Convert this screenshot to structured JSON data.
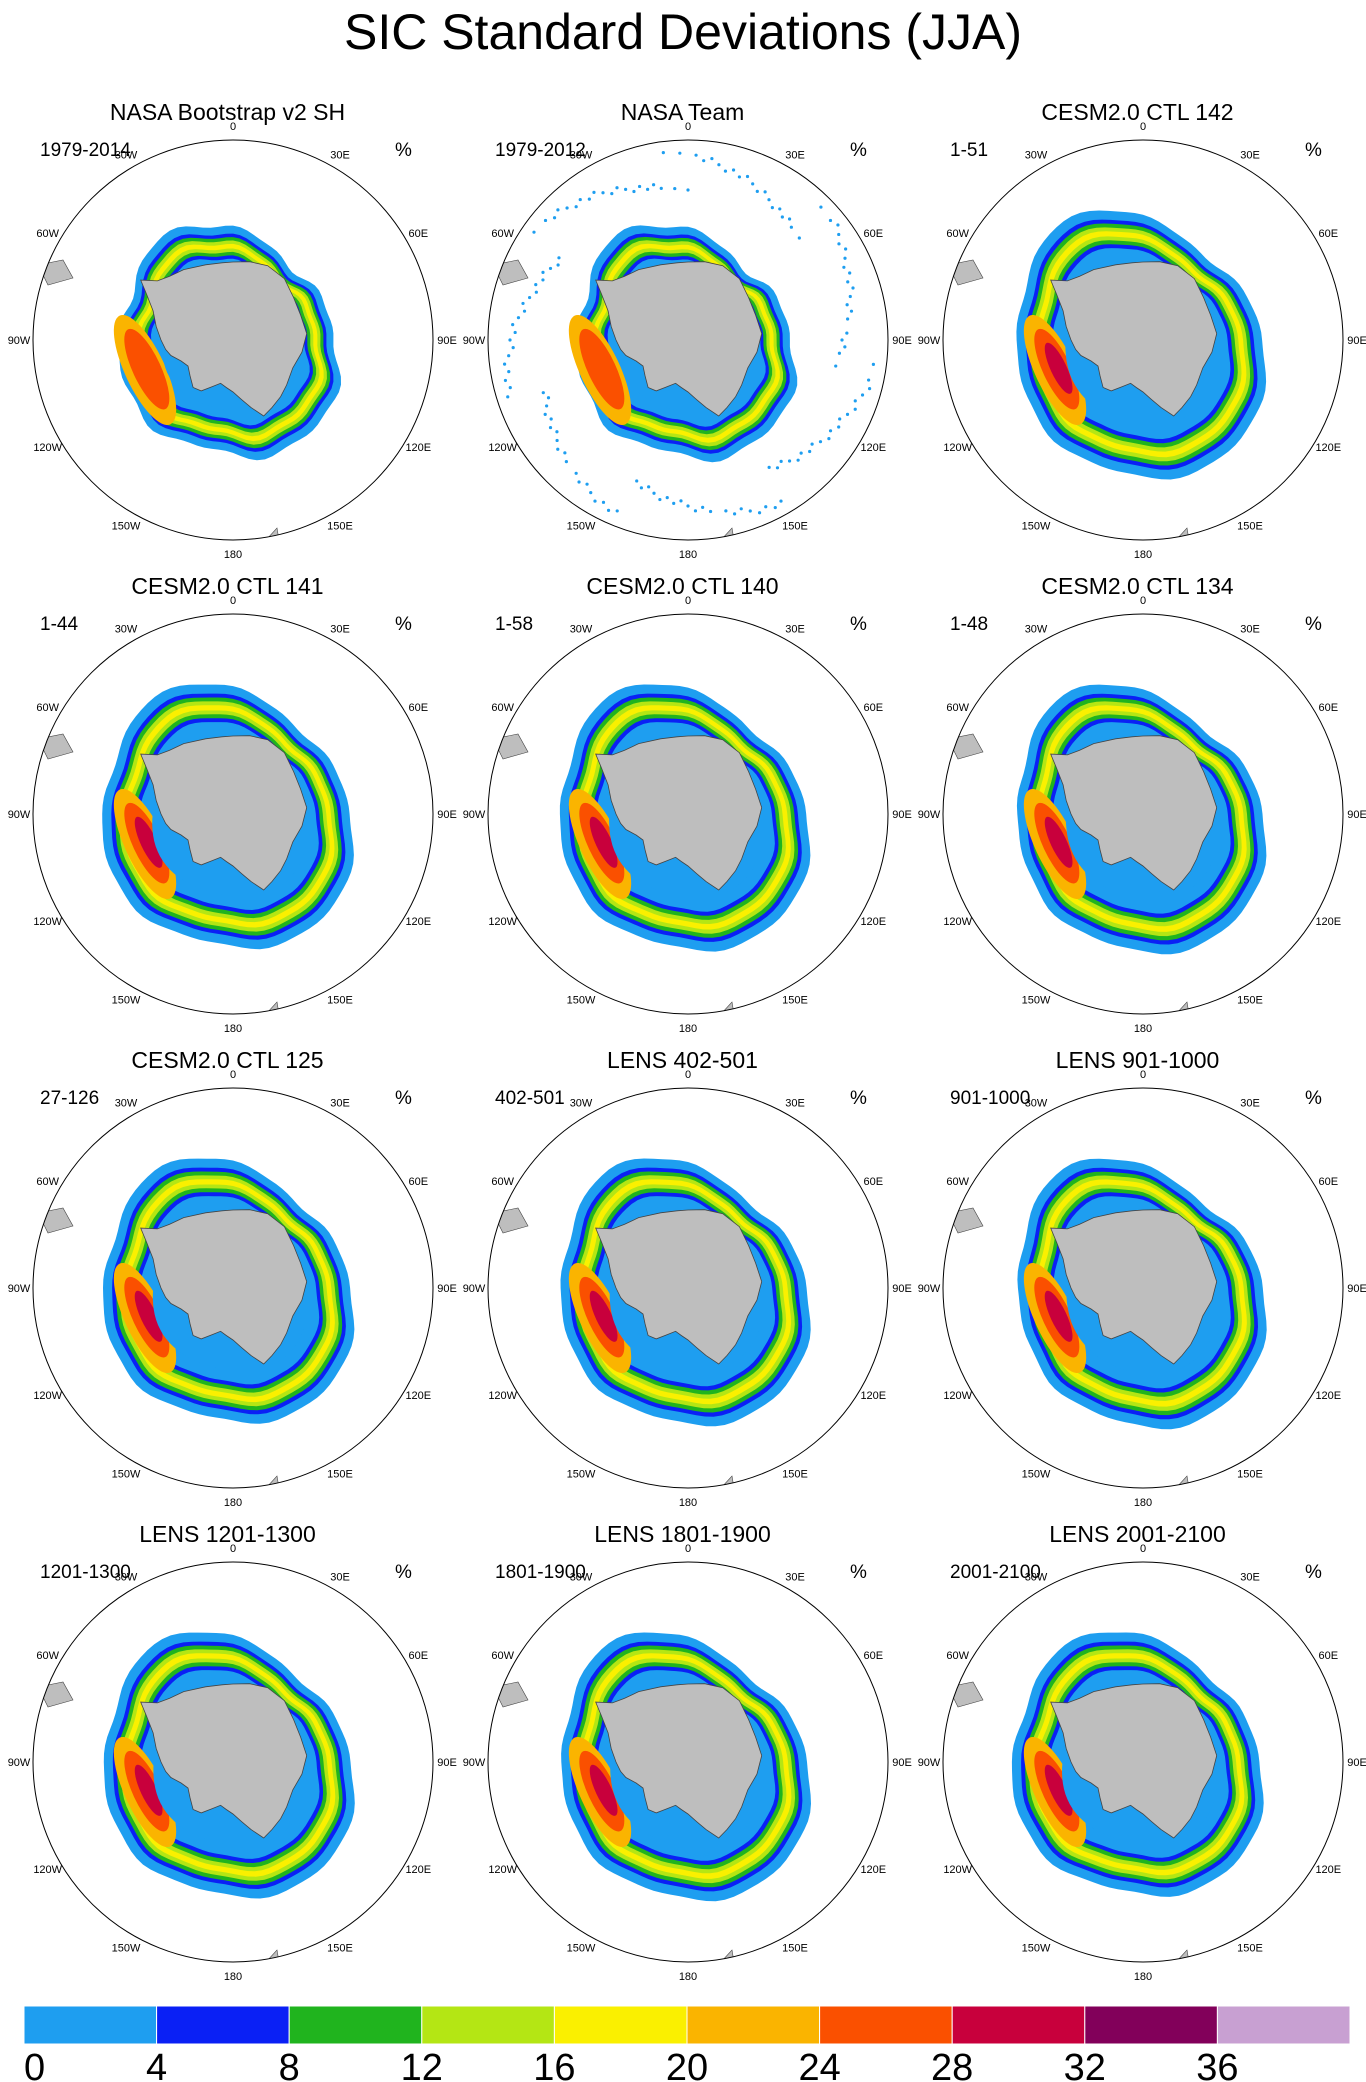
{
  "title": "SIC Standard Deviations (JJA)",
  "unit": "%",
  "panels": [
    {
      "title": "NASA Bootstrap v2 SH",
      "period": "1979-2014",
      "style": "obs_bootstrap"
    },
    {
      "title": "NASA Team",
      "period": "1979-2012",
      "style": "obs_team"
    },
    {
      "title": "CESM2.0 CTL 142",
      "period": "1-51",
      "style": "model"
    },
    {
      "title": "CESM2.0 CTL 141",
      "period": "1-44",
      "style": "model"
    },
    {
      "title": "CESM2.0 CTL 140",
      "period": "1-58",
      "style": "model"
    },
    {
      "title": "CESM2.0 CTL 134",
      "period": "1-48",
      "style": "model"
    },
    {
      "title": "CESM2.0 CTL 125",
      "period": "27-126",
      "style": "model"
    },
    {
      "title": "LENS 402-501",
      "period": "402-501",
      "style": "model"
    },
    {
      "title": "LENS 901-1000",
      "period": "901-1000",
      "style": "model"
    },
    {
      "title": "LENS 1201-1300",
      "period": "1201-1300",
      "style": "model"
    },
    {
      "title": "LENS 1801-1900",
      "period": "1801-1900",
      "style": "model"
    },
    {
      "title": "LENS 2001-2100",
      "period": "2001-2100",
      "style": "model"
    }
  ],
  "longitude_labels": [
    "0",
    "30E",
    "60E",
    "90E",
    "120E",
    "150E",
    "180",
    "150W",
    "120W",
    "90W",
    "60W",
    "30W"
  ],
  "colorbar": {
    "ticks": [
      "0",
      "4",
      "8",
      "12",
      "16",
      "20",
      "24",
      "28",
      "32",
      "36"
    ],
    "colors": [
      "#1e9ef0",
      "#0a20f5",
      "#20b41e",
      "#b4e614",
      "#faf000",
      "#fab400",
      "#fa5000",
      "#c8003c",
      "#82005a",
      "#c8a0d2"
    ]
  },
  "land_color": "#bebebe"
}
